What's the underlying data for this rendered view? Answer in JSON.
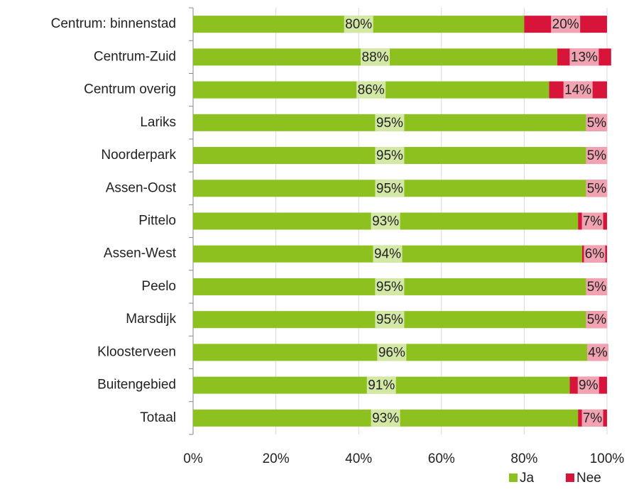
{
  "chart_data": {
    "type": "stacked_barh",
    "categories": [
      "Centrum: binnenstad",
      "Centrum-Zuid",
      "Centrum overig",
      "Lariks",
      "Noorderpark",
      "Assen-Oost",
      "Pittelo",
      "Assen-West",
      "Peelo",
      "Marsdijk",
      "Kloosterveen",
      "Buitengebied",
      "Totaal"
    ],
    "series": [
      {
        "name": "Ja",
        "color": "#8cc11f",
        "label_bg": "#d4e8a6",
        "values": [
          80,
          88,
          86,
          95,
          95,
          95,
          93,
          94,
          95,
          95,
          96,
          91,
          93
        ],
        "value_labels": [
          "80%",
          "88%",
          "86%",
          "95%",
          "95%",
          "95%",
          "93%",
          "94%",
          "95%",
          "95%",
          "96%",
          "91%",
          "93%"
        ]
      },
      {
        "name": "Nee",
        "color": "#d7153a",
        "label_bg": "#f2a3b2",
        "values": [
          20,
          13,
          14,
          5,
          5,
          5,
          7,
          6,
          5,
          5,
          4,
          9,
          7
        ],
        "value_labels": [
          "20%",
          "13%",
          "14%",
          "5%",
          "5%",
          "5%",
          "7%",
          "6%",
          "5%",
          "5%",
          "4%",
          "9%",
          "7%"
        ]
      }
    ],
    "xlim": [
      0,
      100
    ],
    "xticks": [
      {
        "value": 0,
        "label": "0%"
      },
      {
        "value": 20,
        "label": "20%"
      },
      {
        "value": 40,
        "label": "40%"
      },
      {
        "value": 60,
        "label": "60%"
      },
      {
        "value": 80,
        "label": "80%"
      },
      {
        "value": 100,
        "label": "100%"
      }
    ],
    "grid": true,
    "legend": "bottom-right"
  }
}
